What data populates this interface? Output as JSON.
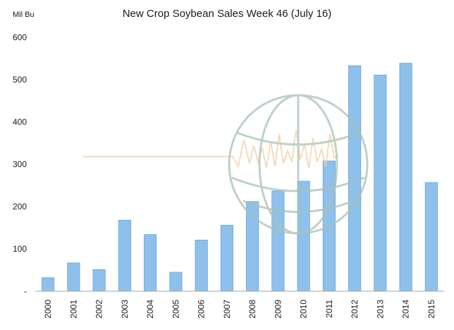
{
  "chart_data": {
    "type": "bar",
    "title": "New Crop Soybean Sales Week 46 (July 16)",
    "unit_label": "Mil Bu",
    "xlabel": "",
    "ylabel": "",
    "ylim": [
      0,
      600
    ],
    "yticks": [
      "-",
      "100",
      "200",
      "300",
      "400",
      "500",
      "600"
    ],
    "categories": [
      "2000",
      "2001",
      "2002",
      "2003",
      "2004",
      "2005",
      "2006",
      "2007",
      "2008",
      "2009",
      "2010",
      "2011",
      "2012",
      "2013",
      "2014",
      "2015"
    ],
    "values": [
      32,
      67,
      51,
      168,
      134,
      45,
      121,
      156,
      212,
      237,
      260,
      308,
      533,
      511,
      539,
      257
    ],
    "grid": false,
    "legend": "none",
    "colors": {
      "bar_fill": "#8ec0ec",
      "bar_stroke": "#6aa6dc",
      "axis": "#a6a6a6",
      "watermark": "#a9c2b4",
      "watermark_wave": "#f3cfa4"
    }
  }
}
